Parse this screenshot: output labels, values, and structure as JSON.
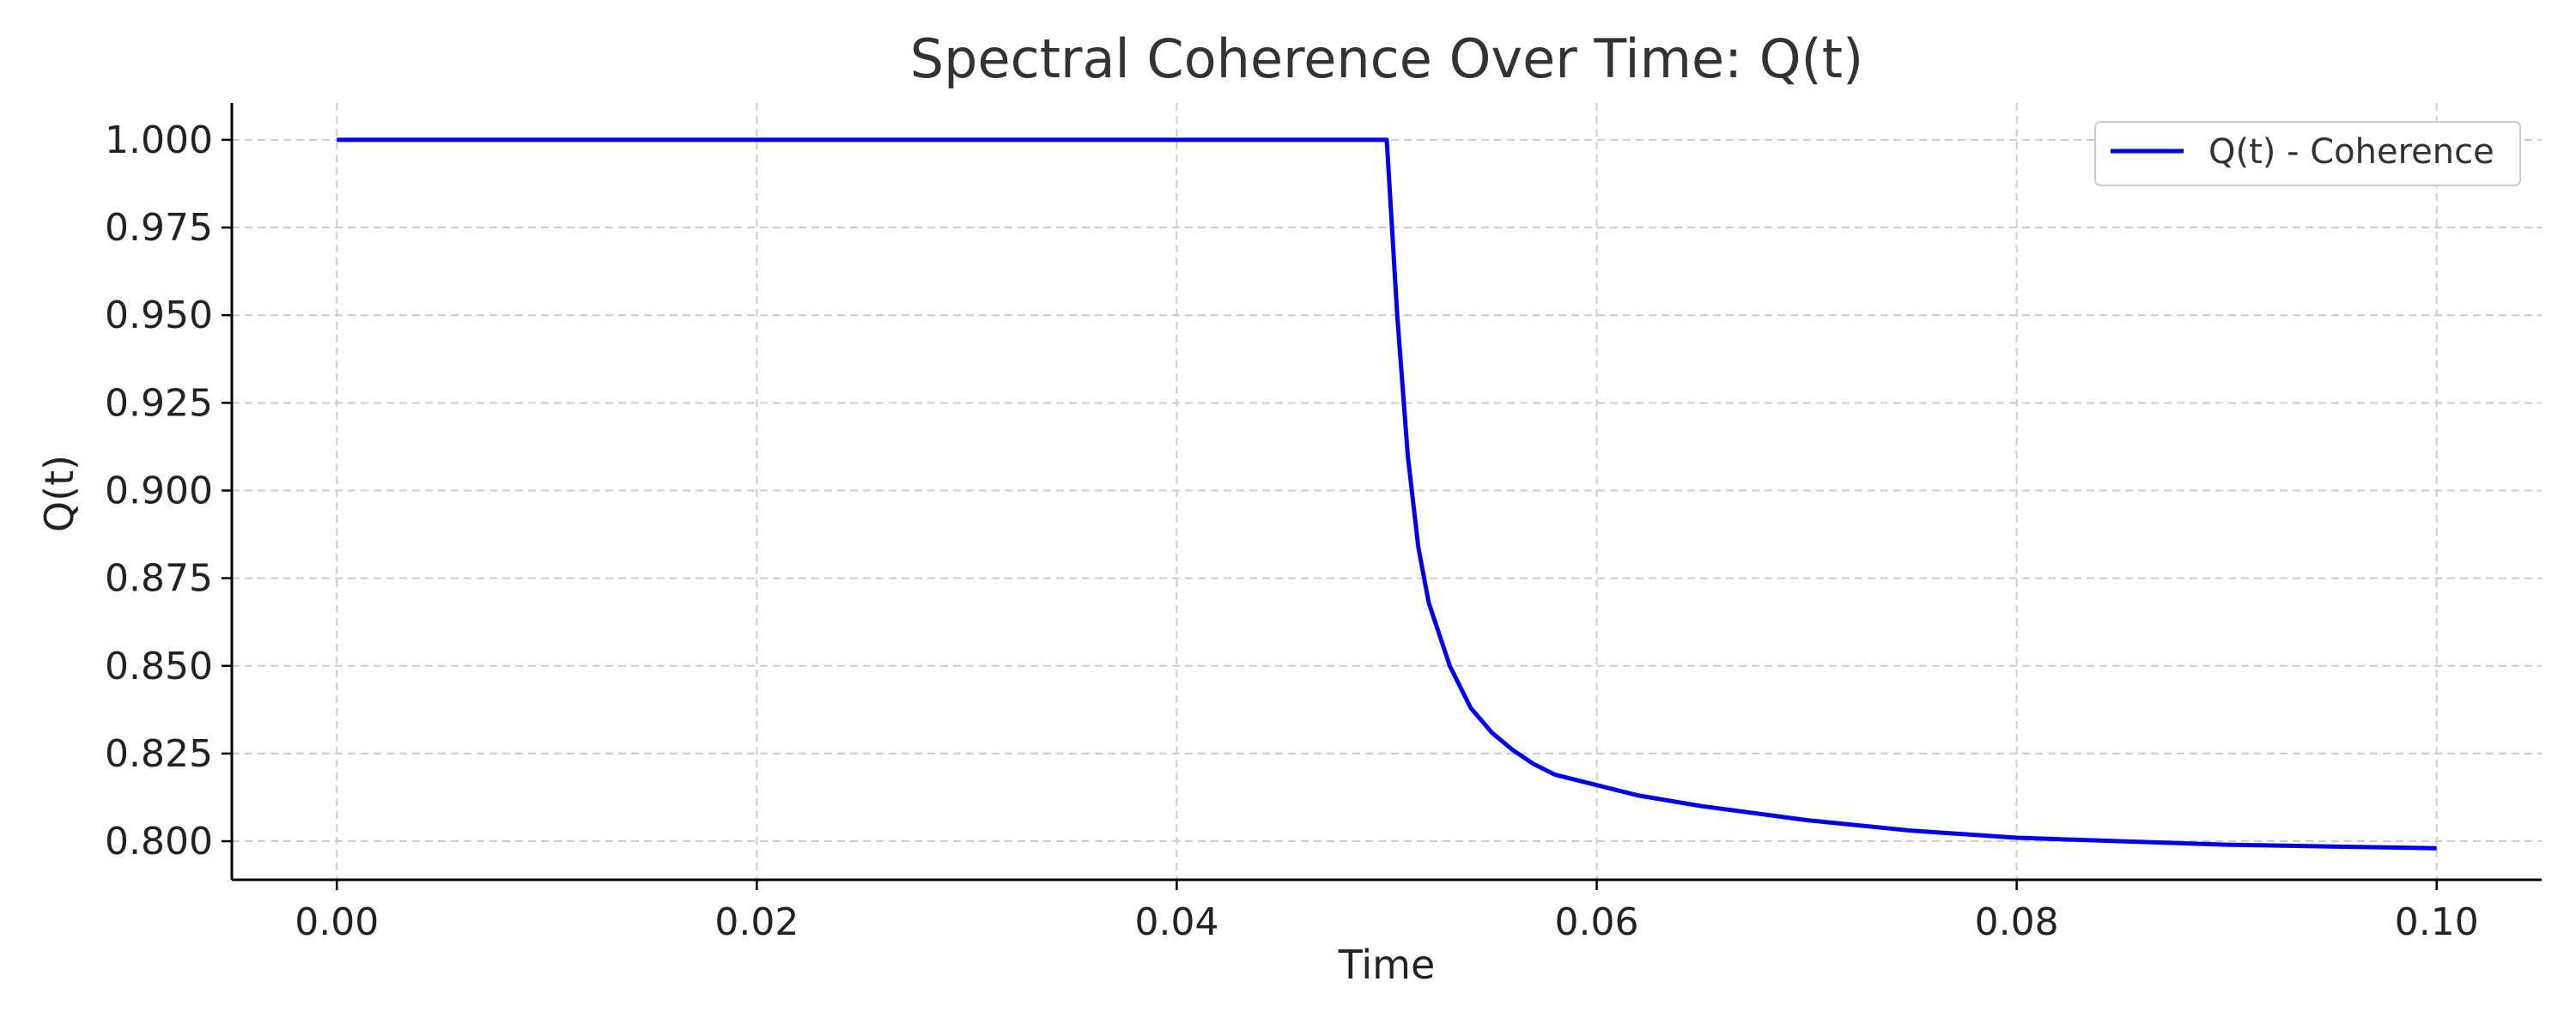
{
  "chart_data": {
    "type": "line",
    "title": "Spectral Coherence Over Time: Q(t)",
    "xlabel": "Time",
    "ylabel": "Q(t)",
    "xlim": [
      -0.005,
      0.105
    ],
    "ylim": [
      0.789,
      1.0105
    ],
    "xticks": [
      0.0,
      0.02,
      0.04,
      0.06,
      0.08,
      0.1
    ],
    "xtick_labels": [
      "0.00",
      "0.02",
      "0.04",
      "0.06",
      "0.08",
      "0.10"
    ],
    "yticks": [
      0.8,
      0.825,
      0.85,
      0.875,
      0.9,
      0.925,
      0.95,
      0.975,
      1.0
    ],
    "ytick_labels": [
      "0.800",
      "0.825",
      "0.850",
      "0.875",
      "0.900",
      "0.925",
      "0.950",
      "0.975",
      "1.000"
    ],
    "grid": true,
    "legend_position": "top-right",
    "series": [
      {
        "name": "Q(t) - Coherence",
        "color": "#0000ee",
        "x": [
          0.0,
          0.01,
          0.02,
          0.03,
          0.04,
          0.05,
          0.0505,
          0.051,
          0.0515,
          0.052,
          0.053,
          0.054,
          0.055,
          0.056,
          0.057,
          0.058,
          0.06,
          0.062,
          0.065,
          0.07,
          0.075,
          0.08,
          0.085,
          0.09,
          0.095,
          0.1
        ],
        "y": [
          1.0,
          1.0,
          1.0,
          1.0,
          1.0,
          1.0,
          0.95,
          0.91,
          0.884,
          0.868,
          0.85,
          0.838,
          0.831,
          0.826,
          0.822,
          0.819,
          0.816,
          0.813,
          0.81,
          0.806,
          0.803,
          0.801,
          0.8,
          0.799,
          0.7985,
          0.798
        ]
      }
    ]
  }
}
